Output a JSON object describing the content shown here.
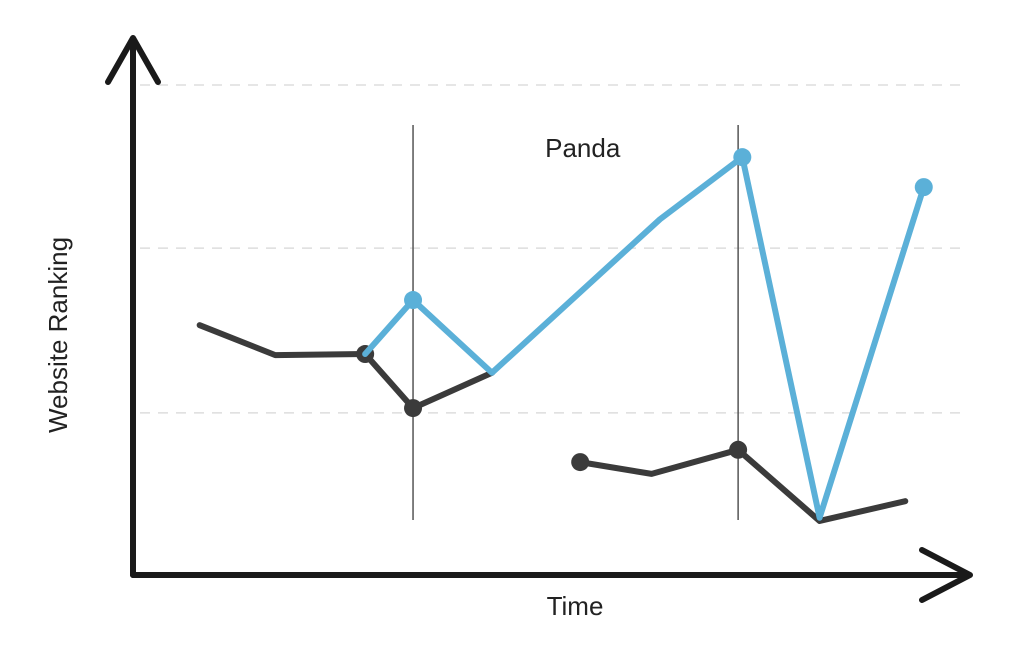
{
  "chart_data": {
    "type": "line",
    "x_label": "Time",
    "y_label": "Website Ranking",
    "xlim": [
      0,
      100
    ],
    "ylim": [
      0,
      100
    ],
    "grid_lines": [
      30.3,
      61.1,
      91.6
    ],
    "vlines": [
      33.1,
      71.8
    ],
    "annotations": [
      {
        "text": "Panda",
        "x": 53.3,
        "y": 79.4
      }
    ],
    "series": [
      {
        "color": "#3b3b3b",
        "x": [
          7.7,
          16.7,
          27.4,
          33.1,
          42.5,
          null,
          53.0,
          61.5,
          71.8,
          81.5,
          91.7
        ],
        "values": [
          46.7,
          41.1,
          41.3,
          31.2,
          37.8,
          null,
          21.1,
          18.9,
          23.4,
          10.1,
          13.8
        ],
        "markers": [
          2,
          3,
          6,
          8
        ]
      },
      {
        "color": "#5bb0d8",
        "x": [
          27.4,
          33.1,
          42.5,
          62.5,
          72.3,
          81.5,
          93.9
        ],
        "values": [
          41.3,
          51.4,
          37.8,
          66.5,
          78.1,
          10.7,
          72.5
        ],
        "markers": [
          1,
          4,
          6
        ]
      }
    ]
  }
}
